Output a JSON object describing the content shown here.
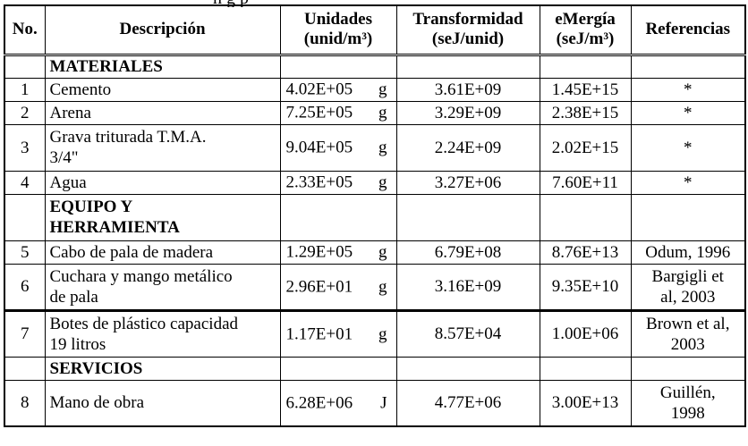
{
  "caption_fragment": "ñ     g       p",
  "table": {
    "headers": {
      "no": "No.",
      "descripcion": "Descripción",
      "unidades": [
        "Unidades",
        "(unid/m³)"
      ],
      "transformidad": [
        "Transformidad",
        "(seJ/unid)"
      ],
      "emergia": [
        "eMergía",
        "(seJ/m³)"
      ],
      "referencias": "Referencias"
    },
    "sections": [
      {
        "title_lines": [
          "MATERIALES"
        ],
        "rows": [
          {
            "no": "1",
            "desc": [
              "Cemento"
            ],
            "unit_value": "4.02E+05",
            "unit_symbol": "g",
            "transformity": "3.61E+09",
            "emergy": "1.45E+15",
            "ref": [
              "*"
            ]
          },
          {
            "no": "2",
            "desc": [
              "Arena"
            ],
            "unit_value": "7.25E+05",
            "unit_symbol": "g",
            "transformity": "3.29E+09",
            "emergy": "2.38E+15",
            "ref": [
              "*"
            ]
          },
          {
            "no": "3",
            "desc": [
              "Grava triturada T.M.A.",
              "3/4\""
            ],
            "unit_value": "9.04E+05",
            "unit_symbol": "g",
            "transformity": "2.24E+09",
            "emergy": "2.02E+15",
            "ref": [
              "*"
            ]
          },
          {
            "no": "4",
            "desc": [
              "Agua"
            ],
            "unit_value": "2.33E+05",
            "unit_symbol": "g",
            "transformity": "3.27E+06",
            "emergy": "7.60E+11",
            "ref": [
              "*"
            ]
          }
        ]
      },
      {
        "title_lines": [
          "EQUIPO Y",
          "HERRAMIENTA"
        ],
        "rows": [
          {
            "no": "5",
            "desc": [
              "Cabo de pala de madera"
            ],
            "unit_value": "1.29E+05",
            "unit_symbol": "g",
            "transformity": "6.79E+08",
            "emergy": "8.76E+13",
            "ref": [
              "Odum, 1996"
            ]
          },
          {
            "no": "6",
            "desc": [
              "Cuchara y mango metálico",
              "de pala"
            ],
            "unit_value": "2.96E+01",
            "unit_symbol": "g",
            "transformity": "3.16E+09",
            "emergy": "9.35E+10",
            "ref": [
              "Bargigli et",
              "al, 2003"
            ]
          },
          {
            "no": "7",
            "desc": [
              "Botes de plástico capacidad",
              "19 litros"
            ],
            "unit_value": "1.17E+01",
            "unit_symbol": "g",
            "transformity": "8.57E+04",
            "emergy": "1.00E+06",
            "ref": [
              "Brown et al,",
              "2003"
            ]
          }
        ]
      },
      {
        "title_lines": [
          "SERVICIOS"
        ],
        "rows": [
          {
            "no": "8",
            "desc": [
              "Mano de obra"
            ],
            "unit_value": "6.28E+06",
            "unit_symbol": "J",
            "transformity": "4.77E+06",
            "emergy": "3.00E+13",
            "ref": [
              "Guillén,",
              "1998"
            ]
          }
        ]
      }
    ]
  }
}
